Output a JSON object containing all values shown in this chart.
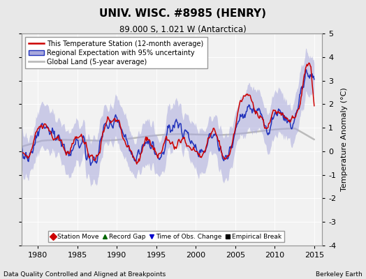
{
  "title": "UNIV. WISC. #8985 (HENRY)",
  "subtitle": "89.000 S, 1.021 W (Antarctica)",
  "ylabel": "Temperature Anomaly (°C)",
  "xlabel_left": "Data Quality Controlled and Aligned at Breakpoints",
  "xlabel_right": "Berkeley Earth",
  "xlim": [
    1978,
    2016
  ],
  "ylim": [
    -4,
    5
  ],
  "yticks": [
    -4,
    -3,
    -2,
    -1,
    0,
    1,
    2,
    3,
    4,
    5
  ],
  "xticks": [
    1980,
    1985,
    1990,
    1995,
    2000,
    2005,
    2010,
    2015
  ],
  "bg_color": "#e8e8e8",
  "plot_bg_color": "#f2f2f2",
  "legend_labels": [
    "This Temperature Station (12-month average)",
    "Regional Expectation with 95% uncertainty",
    "Global Land (5-year average)"
  ],
  "legend_colors": [
    "#cc0000",
    "#4444cc",
    "#aaaaaa"
  ],
  "marker_labels": [
    "Station Move",
    "Record Gap",
    "Time of Obs. Change",
    "Empirical Break"
  ],
  "marker_colors": [
    "#cc0000",
    "#006600",
    "#0000cc",
    "#000000"
  ],
  "marker_styles": [
    "D",
    "^",
    "v",
    "s"
  ]
}
